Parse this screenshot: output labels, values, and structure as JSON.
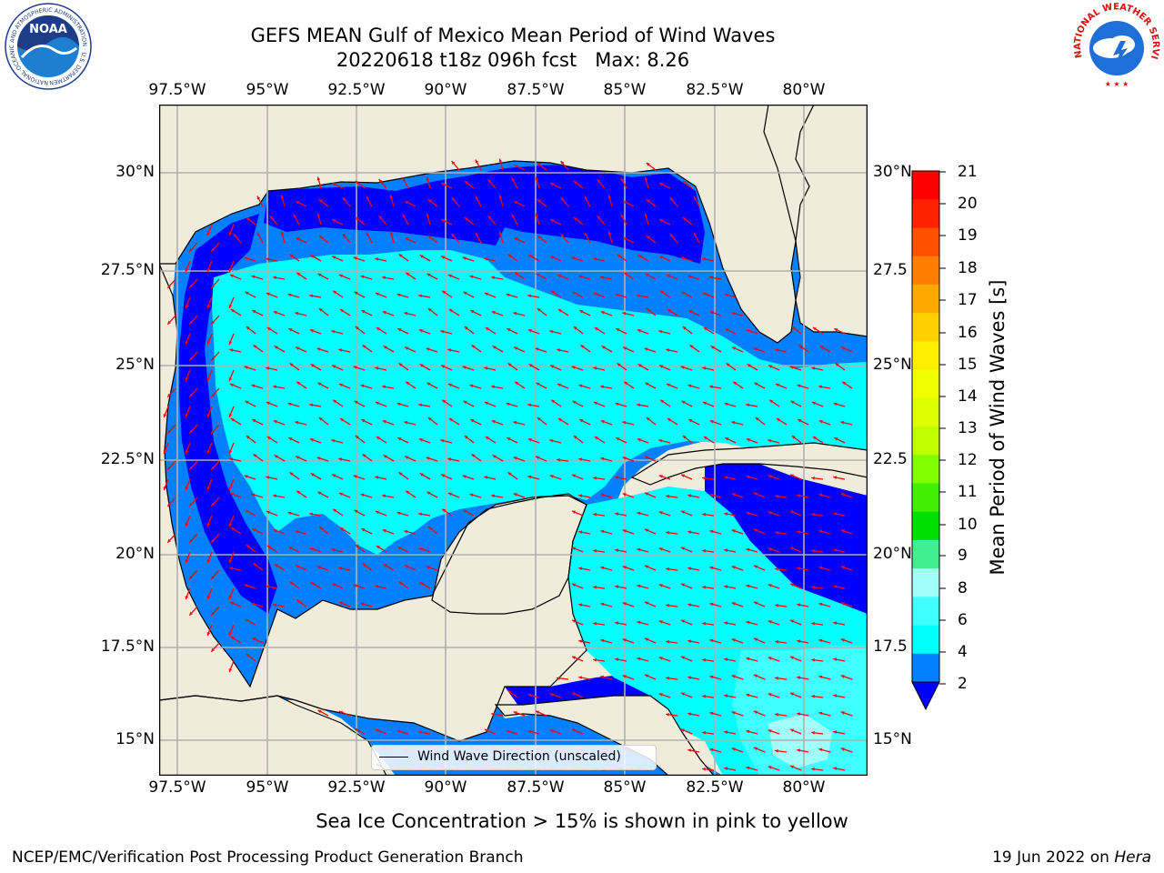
{
  "header": {
    "title": "GEFS MEAN Gulf of Mexico Mean Period of Wind Waves",
    "run": "20220618 t18z 096h fcst",
    "max_label": "Max: 8.26"
  },
  "logos": {
    "noaa_text": "NOAA",
    "noaa_ring": "NATIONAL OCEANIC AND ATMOSPHERIC ADMINISTRATION · U.S. DEPARTMENT OF COMMERCE",
    "nws_ring": "NATIONAL WEATHER SERVICE"
  },
  "axes": {
    "lon_labels": [
      "97.5°W",
      "95°W",
      "92.5°W",
      "90°W",
      "87.5°W",
      "85°W",
      "82.5°W",
      "80°W"
    ],
    "lat_labels_left": [
      "30°N",
      "27.5°N",
      "25°N",
      "22.5°N",
      "20°N",
      "17.5°N",
      "15°N"
    ],
    "lat_labels_right": [
      "30°N",
      "27.5",
      "25°N",
      "22.5",
      "20°N",
      "17.5",
      "15°N"
    ]
  },
  "colorbar": {
    "label": "Mean Period of Wind Waves [s]",
    "ticks": [
      "21",
      "20",
      "19",
      "18",
      "17",
      "16",
      "15",
      "14",
      "13",
      "12",
      "11",
      "10",
      "9",
      "8",
      "6",
      "4",
      "2"
    ],
    "colors": [
      "#ff0000",
      "#ff2200",
      "#ff5000",
      "#ff8000",
      "#ffa800",
      "#ffd000",
      "#ffee00",
      "#f0ff00",
      "#ddff00",
      "#c0ff00",
      "#80ff00",
      "#40f000",
      "#00e000",
      "#40f090",
      "#a0fff8",
      "#40ffff",
      "#00ffff",
      "#0080ff"
    ],
    "under_color": "#0000ff"
  },
  "map_colors": {
    "land": "#efecdb",
    "band_2_4": "#0080ff",
    "band_4_6": "#00ffff",
    "band_6_8": "#40ffff",
    "band_8_9": "#a0fff8",
    "below_2": "#0000ff",
    "arrow": "#ff0000",
    "grid": "#b0b0b0"
  },
  "legend": {
    "label": "Wind Wave Direction (unscaled)"
  },
  "footer": {
    "subtitle": "Sea Ice Concentration > 15% is shown in pink to yellow",
    "credit": "NCEP/EMC/Verification Post Processing Product Generation Branch",
    "date": "19 Jun 2022 on ",
    "host": "Hera"
  }
}
